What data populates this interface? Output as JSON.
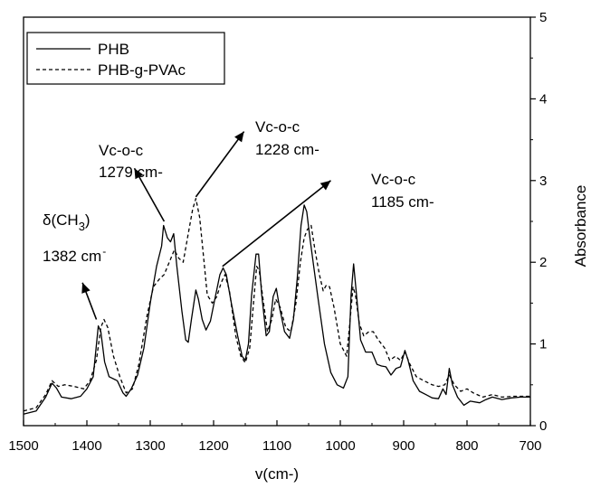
{
  "chart_data": {
    "type": "line",
    "xlabel": "v(cm-)",
    "ylabel": "Absorbance",
    "xlim": [
      1500,
      700
    ],
    "ylim": [
      0,
      5
    ],
    "x_ticks": [
      "1500",
      "1400",
      "1300",
      "1200",
      "1100",
      "1000",
      "900",
      "800",
      "700"
    ],
    "y_ticks": [
      "0",
      "1",
      "2",
      "3",
      "4",
      "5"
    ],
    "y_axis_side": "right",
    "grid": false,
    "legend_position": "top-left",
    "series": [
      {
        "name": "PHB",
        "style": "solid",
        "color": "#000000",
        "points": [
          [
            1500,
            0.14
          ],
          [
            1480,
            0.18
          ],
          [
            1465,
            0.35
          ],
          [
            1455,
            0.52
          ],
          [
            1448,
            0.46
          ],
          [
            1440,
            0.35
          ],
          [
            1425,
            0.33
          ],
          [
            1410,
            0.36
          ],
          [
            1400,
            0.45
          ],
          [
            1390,
            0.6
          ],
          [
            1382,
            1.22
          ],
          [
            1378,
            1.15
          ],
          [
            1372,
            0.78
          ],
          [
            1365,
            0.6
          ],
          [
            1352,
            0.55
          ],
          [
            1343,
            0.4
          ],
          [
            1338,
            0.36
          ],
          [
            1330,
            0.45
          ],
          [
            1320,
            0.62
          ],
          [
            1310,
            0.95
          ],
          [
            1300,
            1.5
          ],
          [
            1290,
            1.95
          ],
          [
            1282,
            2.2
          ],
          [
            1279,
            2.45
          ],
          [
            1273,
            2.3
          ],
          [
            1268,
            2.25
          ],
          [
            1263,
            2.35
          ],
          [
            1258,
            1.95
          ],
          [
            1250,
            1.4
          ],
          [
            1244,
            1.05
          ],
          [
            1240,
            1.02
          ],
          [
            1235,
            1.3
          ],
          [
            1228,
            1.66
          ],
          [
            1224,
            1.55
          ],
          [
            1218,
            1.3
          ],
          [
            1212,
            1.17
          ],
          [
            1205,
            1.28
          ],
          [
            1198,
            1.55
          ],
          [
            1190,
            1.85
          ],
          [
            1185,
            1.93
          ],
          [
            1180,
            1.85
          ],
          [
            1172,
            1.5
          ],
          [
            1162,
            1.1
          ],
          [
            1155,
            0.85
          ],
          [
            1150,
            0.8
          ],
          [
            1145,
            1.0
          ],
          [
            1140,
            1.6
          ],
          [
            1133,
            2.1
          ],
          [
            1129,
            2.1
          ],
          [
            1124,
            1.6
          ],
          [
            1117,
            1.1
          ],
          [
            1112,
            1.15
          ],
          [
            1106,
            1.58
          ],
          [
            1101,
            1.68
          ],
          [
            1096,
            1.45
          ],
          [
            1088,
            1.15
          ],
          [
            1080,
            1.07
          ],
          [
            1074,
            1.3
          ],
          [
            1068,
            1.8
          ],
          [
            1062,
            2.45
          ],
          [
            1057,
            2.7
          ],
          [
            1053,
            2.62
          ],
          [
            1048,
            2.3
          ],
          [
            1042,
            1.95
          ],
          [
            1035,
            1.55
          ],
          [
            1025,
            1.0
          ],
          [
            1015,
            0.65
          ],
          [
            1005,
            0.5
          ],
          [
            995,
            0.46
          ],
          [
            988,
            0.6
          ],
          [
            983,
            1.6
          ],
          [
            979,
            1.98
          ],
          [
            975,
            1.65
          ],
          [
            968,
            1.05
          ],
          [
            960,
            0.9
          ],
          [
            950,
            0.9
          ],
          [
            942,
            0.75
          ],
          [
            935,
            0.73
          ],
          [
            928,
            0.72
          ],
          [
            920,
            0.62
          ],
          [
            912,
            0.7
          ],
          [
            905,
            0.72
          ],
          [
            898,
            0.92
          ],
          [
            893,
            0.8
          ],
          [
            885,
            0.55
          ],
          [
            875,
            0.42
          ],
          [
            865,
            0.38
          ],
          [
            855,
            0.34
          ],
          [
            845,
            0.33
          ],
          [
            838,
            0.45
          ],
          [
            833,
            0.38
          ],
          [
            828,
            0.7
          ],
          [
            823,
            0.5
          ],
          [
            815,
            0.35
          ],
          [
            805,
            0.25
          ],
          [
            795,
            0.3
          ],
          [
            780,
            0.28
          ],
          [
            770,
            0.32
          ],
          [
            760,
            0.35
          ],
          [
            745,
            0.32
          ],
          [
            730,
            0.34
          ],
          [
            715,
            0.35
          ],
          [
            700,
            0.35
          ]
        ]
      },
      {
        "name": "PHB-g-PVAc",
        "style": "dashed",
        "color": "#000000",
        "points": [
          [
            1500,
            0.18
          ],
          [
            1480,
            0.22
          ],
          [
            1465,
            0.38
          ],
          [
            1455,
            0.55
          ],
          [
            1445,
            0.48
          ],
          [
            1435,
            0.5
          ],
          [
            1420,
            0.48
          ],
          [
            1405,
            0.45
          ],
          [
            1395,
            0.55
          ],
          [
            1385,
            0.8
          ],
          [
            1378,
            1.2
          ],
          [
            1373,
            1.3
          ],
          [
            1367,
            1.2
          ],
          [
            1358,
            0.85
          ],
          [
            1348,
            0.6
          ],
          [
            1338,
            0.4
          ],
          [
            1328,
            0.45
          ],
          [
            1318,
            0.75
          ],
          [
            1305,
            1.35
          ],
          [
            1295,
            1.7
          ],
          [
            1285,
            1.8
          ],
          [
            1278,
            1.85
          ],
          [
            1270,
            2.0
          ],
          [
            1262,
            2.15
          ],
          [
            1255,
            2.05
          ],
          [
            1248,
            2.0
          ],
          [
            1240,
            2.35
          ],
          [
            1233,
            2.65
          ],
          [
            1228,
            2.78
          ],
          [
            1222,
            2.55
          ],
          [
            1215,
            2.0
          ],
          [
            1210,
            1.6
          ],
          [
            1202,
            1.5
          ],
          [
            1195,
            1.58
          ],
          [
            1188,
            1.75
          ],
          [
            1182,
            1.85
          ],
          [
            1175,
            1.65
          ],
          [
            1165,
            1.1
          ],
          [
            1157,
            0.85
          ],
          [
            1150,
            0.77
          ],
          [
            1143,
            0.95
          ],
          [
            1137,
            1.5
          ],
          [
            1132,
            1.95
          ],
          [
            1128,
            1.9
          ],
          [
            1122,
            1.55
          ],
          [
            1115,
            1.15
          ],
          [
            1108,
            1.3
          ],
          [
            1102,
            1.55
          ],
          [
            1095,
            1.45
          ],
          [
            1086,
            1.2
          ],
          [
            1078,
            1.15
          ],
          [
            1070,
            1.5
          ],
          [
            1063,
            2.0
          ],
          [
            1057,
            2.3
          ],
          [
            1052,
            2.4
          ],
          [
            1046,
            2.45
          ],
          [
            1040,
            2.15
          ],
          [
            1033,
            1.85
          ],
          [
            1027,
            1.65
          ],
          [
            1022,
            1.72
          ],
          [
            1017,
            1.7
          ],
          [
            1010,
            1.45
          ],
          [
            1000,
            1.0
          ],
          [
            990,
            0.85
          ],
          [
            985,
            1.25
          ],
          [
            980,
            1.7
          ],
          [
            976,
            1.6
          ],
          [
            970,
            1.25
          ],
          [
            963,
            1.1
          ],
          [
            955,
            1.15
          ],
          [
            948,
            1.15
          ],
          [
            940,
            1.05
          ],
          [
            930,
            0.95
          ],
          [
            922,
            0.8
          ],
          [
            913,
            0.85
          ],
          [
            905,
            0.8
          ],
          [
            898,
            0.9
          ],
          [
            890,
            0.75
          ],
          [
            880,
            0.6
          ],
          [
            868,
            0.55
          ],
          [
            855,
            0.5
          ],
          [
            845,
            0.48
          ],
          [
            835,
            0.5
          ],
          [
            828,
            0.62
          ],
          [
            820,
            0.5
          ],
          [
            810,
            0.42
          ],
          [
            800,
            0.45
          ],
          [
            790,
            0.4
          ],
          [
            775,
            0.35
          ],
          [
            760,
            0.38
          ],
          [
            745,
            0.35
          ],
          [
            725,
            0.36
          ],
          [
            700,
            0.36
          ]
        ]
      }
    ],
    "annotations": [
      {
        "id": "d-ch3",
        "line1": "δ(CH",
        "sub": "3",
        "close": ")",
        "line2": "1382 cm",
        "sup": "-",
        "arrow_from": [
          1385,
          1.3
        ],
        "arrow_to": [
          1407,
          1.75
        ]
      },
      {
        "id": "c-o-c-1279",
        "line1": "Vc-o-c",
        "line2": "1279 cm-",
        "arrow_from": [
          1278,
          2.5
        ],
        "arrow_to": [
          1325,
          3.15
        ]
      },
      {
        "id": "c-o-c-1228",
        "line1": "Vc-o-c",
        "line2": "1228 cm-",
        "arrow_from": [
          1228,
          2.8
        ],
        "arrow_to": [
          1152,
          3.6
        ]
      },
      {
        "id": "c-o-c-1185",
        "line1": "Vc-o-c",
        "line2": "1185 cm-",
        "arrow_from": [
          1186,
          1.95
        ],
        "arrow_to": [
          1015,
          3.0
        ]
      }
    ]
  }
}
